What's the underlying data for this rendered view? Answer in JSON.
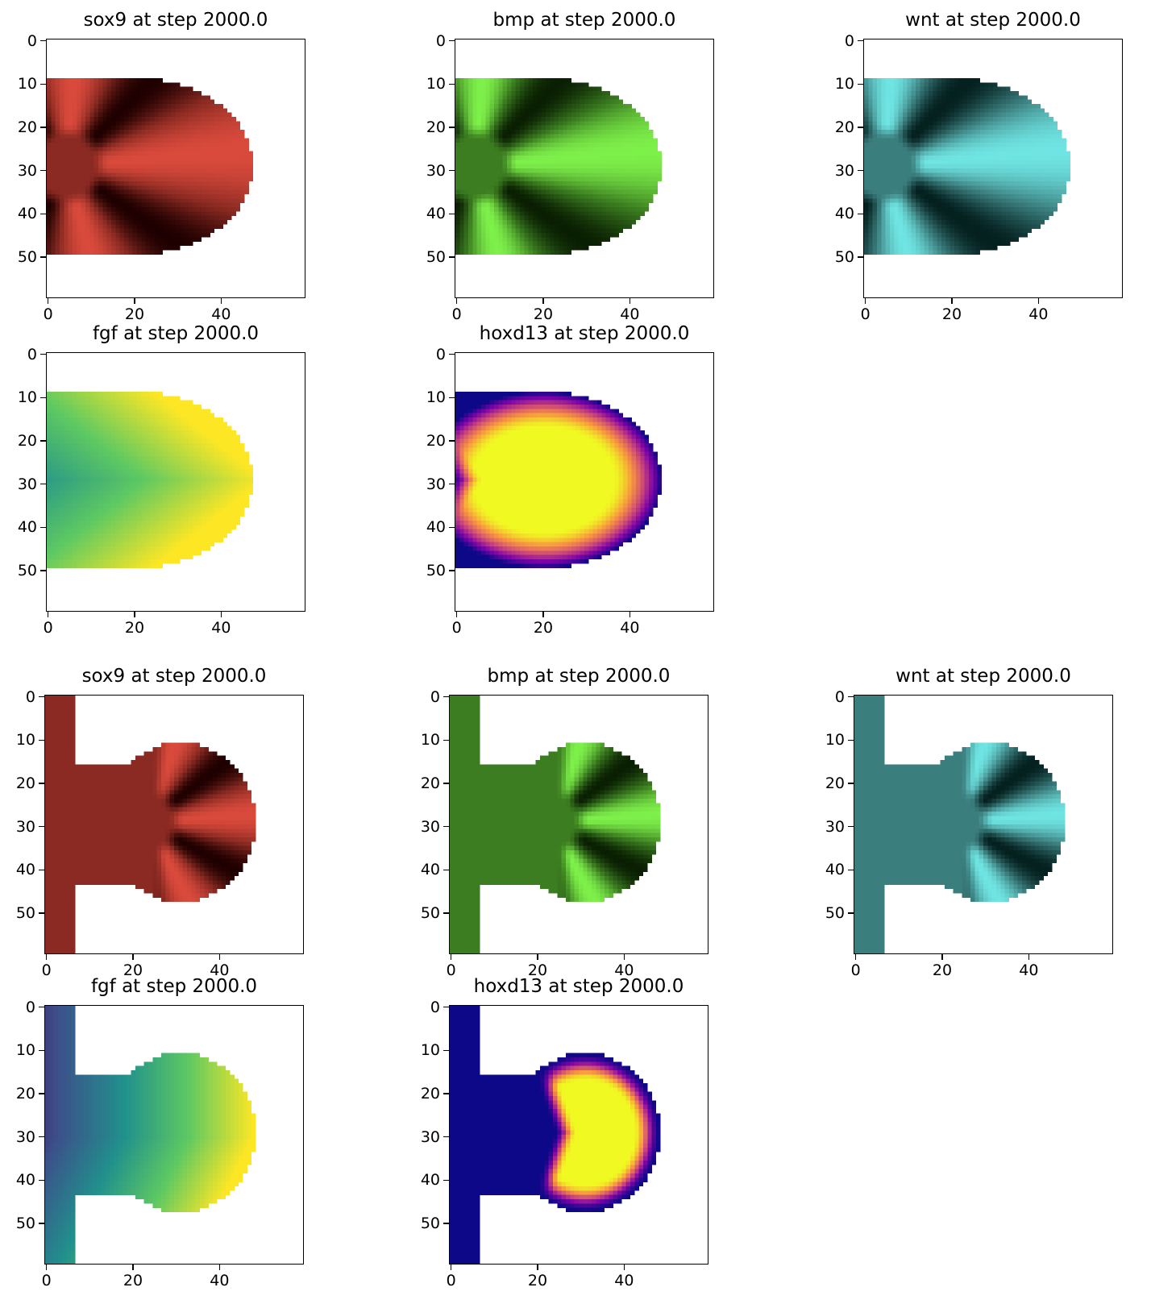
{
  "chart_data": [
    {
      "type": "heatmap",
      "title": "sox9 at step 2000.0",
      "field": "sox9",
      "model": "A",
      "colormap": "red",
      "xticks": [
        "0",
        "20",
        "40"
      ],
      "yticks": [
        "0",
        "10",
        "20",
        "30",
        "40",
        "50"
      ],
      "xlim": [
        0,
        60
      ],
      "ylim": [
        0,
        60
      ]
    },
    {
      "type": "heatmap",
      "title": "bmp at step 2000.0",
      "field": "bmp",
      "model": "A",
      "colormap": "green",
      "xticks": [
        "0",
        "20",
        "40"
      ],
      "yticks": [
        "0",
        "10",
        "20",
        "30",
        "40",
        "50"
      ],
      "xlim": [
        0,
        60
      ],
      "ylim": [
        0,
        60
      ]
    },
    {
      "type": "heatmap",
      "title": "wnt at step 2000.0",
      "field": "wnt",
      "model": "A",
      "colormap": "teal",
      "xticks": [
        "0",
        "20",
        "40"
      ],
      "yticks": [
        "0",
        "10",
        "20",
        "30",
        "40",
        "50"
      ],
      "xlim": [
        0,
        60
      ],
      "ylim": [
        0,
        60
      ]
    },
    {
      "type": "heatmap",
      "title": "fgf at step 2000.0",
      "field": "fgf",
      "model": "A",
      "colormap": "viridis",
      "xticks": [
        "0",
        "20",
        "40"
      ],
      "yticks": [
        "0",
        "10",
        "20",
        "30",
        "40",
        "50"
      ],
      "xlim": [
        0,
        60
      ],
      "ylim": [
        0,
        60
      ]
    },
    {
      "type": "heatmap",
      "title": "hoxd13 at step 2000.0",
      "field": "hoxd13",
      "model": "A",
      "colormap": "plasma",
      "xticks": [
        "0",
        "20",
        "40"
      ],
      "yticks": [
        "0",
        "10",
        "20",
        "30",
        "40",
        "50"
      ],
      "xlim": [
        0,
        60
      ],
      "ylim": [
        0,
        60
      ]
    },
    {
      "type": "heatmap",
      "title": "sox9 at step 2000.0",
      "field": "sox9",
      "model": "B",
      "colormap": "red",
      "xticks": [
        "0",
        "20",
        "40"
      ],
      "yticks": [
        "0",
        "10",
        "20",
        "30",
        "40",
        "50"
      ],
      "xlim": [
        0,
        60
      ],
      "ylim": [
        0,
        60
      ]
    },
    {
      "type": "heatmap",
      "title": "bmp at step 2000.0",
      "field": "bmp",
      "model": "B",
      "colormap": "green",
      "xticks": [
        "0",
        "20",
        "40"
      ],
      "yticks": [
        "0",
        "10",
        "20",
        "30",
        "40",
        "50"
      ],
      "xlim": [
        0,
        60
      ],
      "ylim": [
        0,
        60
      ]
    },
    {
      "type": "heatmap",
      "title": "wnt at step 2000.0",
      "field": "wnt",
      "model": "B",
      "colormap": "teal",
      "xticks": [
        "0",
        "20",
        "40"
      ],
      "yticks": [
        "0",
        "10",
        "20",
        "30",
        "40",
        "50"
      ],
      "xlim": [
        0,
        60
      ],
      "ylim": [
        0,
        60
      ]
    },
    {
      "type": "heatmap",
      "title": "fgf at step 2000.0",
      "field": "fgf",
      "model": "B",
      "colormap": "viridis",
      "xticks": [
        "0",
        "20",
        "40"
      ],
      "yticks": [
        "0",
        "10",
        "20",
        "30",
        "40",
        "50"
      ],
      "xlim": [
        0,
        60
      ],
      "ylim": [
        0,
        60
      ]
    },
    {
      "type": "heatmap",
      "title": "hoxd13 at step 2000.0",
      "field": "hoxd13",
      "model": "B",
      "colormap": "plasma",
      "xticks": [
        "0",
        "20",
        "40"
      ],
      "yticks": [
        "0",
        "10",
        "20",
        "30",
        "40",
        "50"
      ],
      "xlim": [
        0,
        60
      ],
      "ylim": [
        0,
        60
      ]
    }
  ],
  "colors": {
    "red": [
      "#1f0000",
      "#8a2a22",
      "#d94a3c"
    ],
    "green": [
      "#0a1f02",
      "#3b7d20",
      "#7ef04a"
    ],
    "teal": [
      "#04201f",
      "#3b7e7e",
      "#6fe4e2"
    ],
    "viridis": [
      "#440154",
      "#3b528b",
      "#21918c",
      "#5ec962",
      "#fde725"
    ],
    "plasma": [
      "#0d0887",
      "#7e03a8",
      "#cc4778",
      "#f89540",
      "#f0f921"
    ]
  }
}
